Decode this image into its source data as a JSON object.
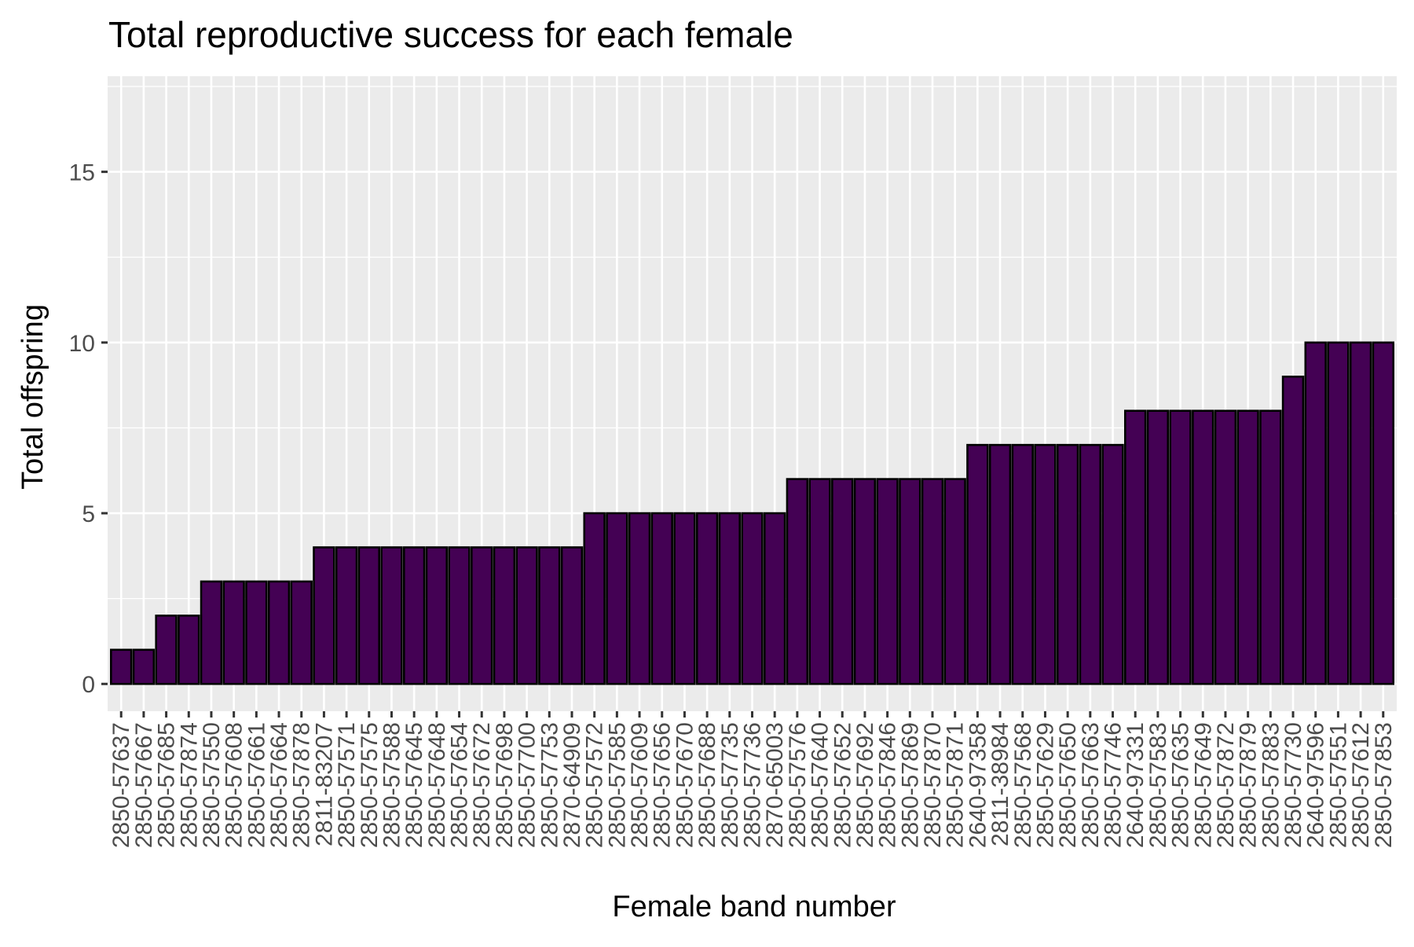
{
  "chart_data": {
    "type": "bar",
    "title": "Total reproductive success for each female",
    "xlabel": "Female band number",
    "ylabel": "Total offspring",
    "ylim": [
      -0.8,
      17.8
    ],
    "yticks": [
      0,
      5,
      10,
      15
    ],
    "grid": true,
    "legend": "none",
    "colors": {
      "bar_fill": "#440154",
      "bar_stroke": "#000000",
      "panel_bg": "#ebebeb",
      "grid_major": "#ffffff",
      "tick_text": "#4d4d4d"
    },
    "categories": [
      "2850-57637",
      "2850-57667",
      "2850-57685",
      "2850-57874",
      "2850-57550",
      "2850-57608",
      "2850-57661",
      "2850-57664",
      "2850-57878",
      "2811-83207",
      "2850-57571",
      "2850-57575",
      "2850-57588",
      "2850-57645",
      "2850-57648",
      "2850-57654",
      "2850-57672",
      "2850-57698",
      "2850-57700",
      "2850-57753",
      "2870-64909",
      "2850-57572",
      "2850-57585",
      "2850-57609",
      "2850-57656",
      "2850-57670",
      "2850-57688",
      "2850-57735",
      "2850-57736",
      "2870-65003",
      "2850-57576",
      "2850-57640",
      "2850-57652",
      "2850-57692",
      "2850-57846",
      "2850-57869",
      "2850-57870",
      "2850-57871",
      "2640-97358",
      "2811-38984",
      "2850-57568",
      "2850-57629",
      "2850-57650",
      "2850-57663",
      "2850-57746",
      "2640-97331",
      "2850-57583",
      "2850-57635",
      "2850-57649",
      "2850-57872",
      "2850-57879",
      "2850-57883",
      "2850-57730",
      "2640-97596",
      "2850-57551",
      "2850-57612",
      "2850-57853"
    ],
    "values": [
      1,
      1,
      2,
      2,
      3,
      3,
      3,
      3,
      3,
      4,
      4,
      4,
      4,
      4,
      4,
      4,
      4,
      4,
      4,
      4,
      4,
      5,
      5,
      5,
      5,
      5,
      5,
      5,
      5,
      5,
      6,
      6,
      6,
      6,
      6,
      6,
      6,
      6,
      7,
      7,
      7,
      7,
      7,
      7,
      7,
      8,
      8,
      8,
      8,
      8,
      8,
      8,
      9,
      10,
      10,
      10,
      10
    ]
  }
}
